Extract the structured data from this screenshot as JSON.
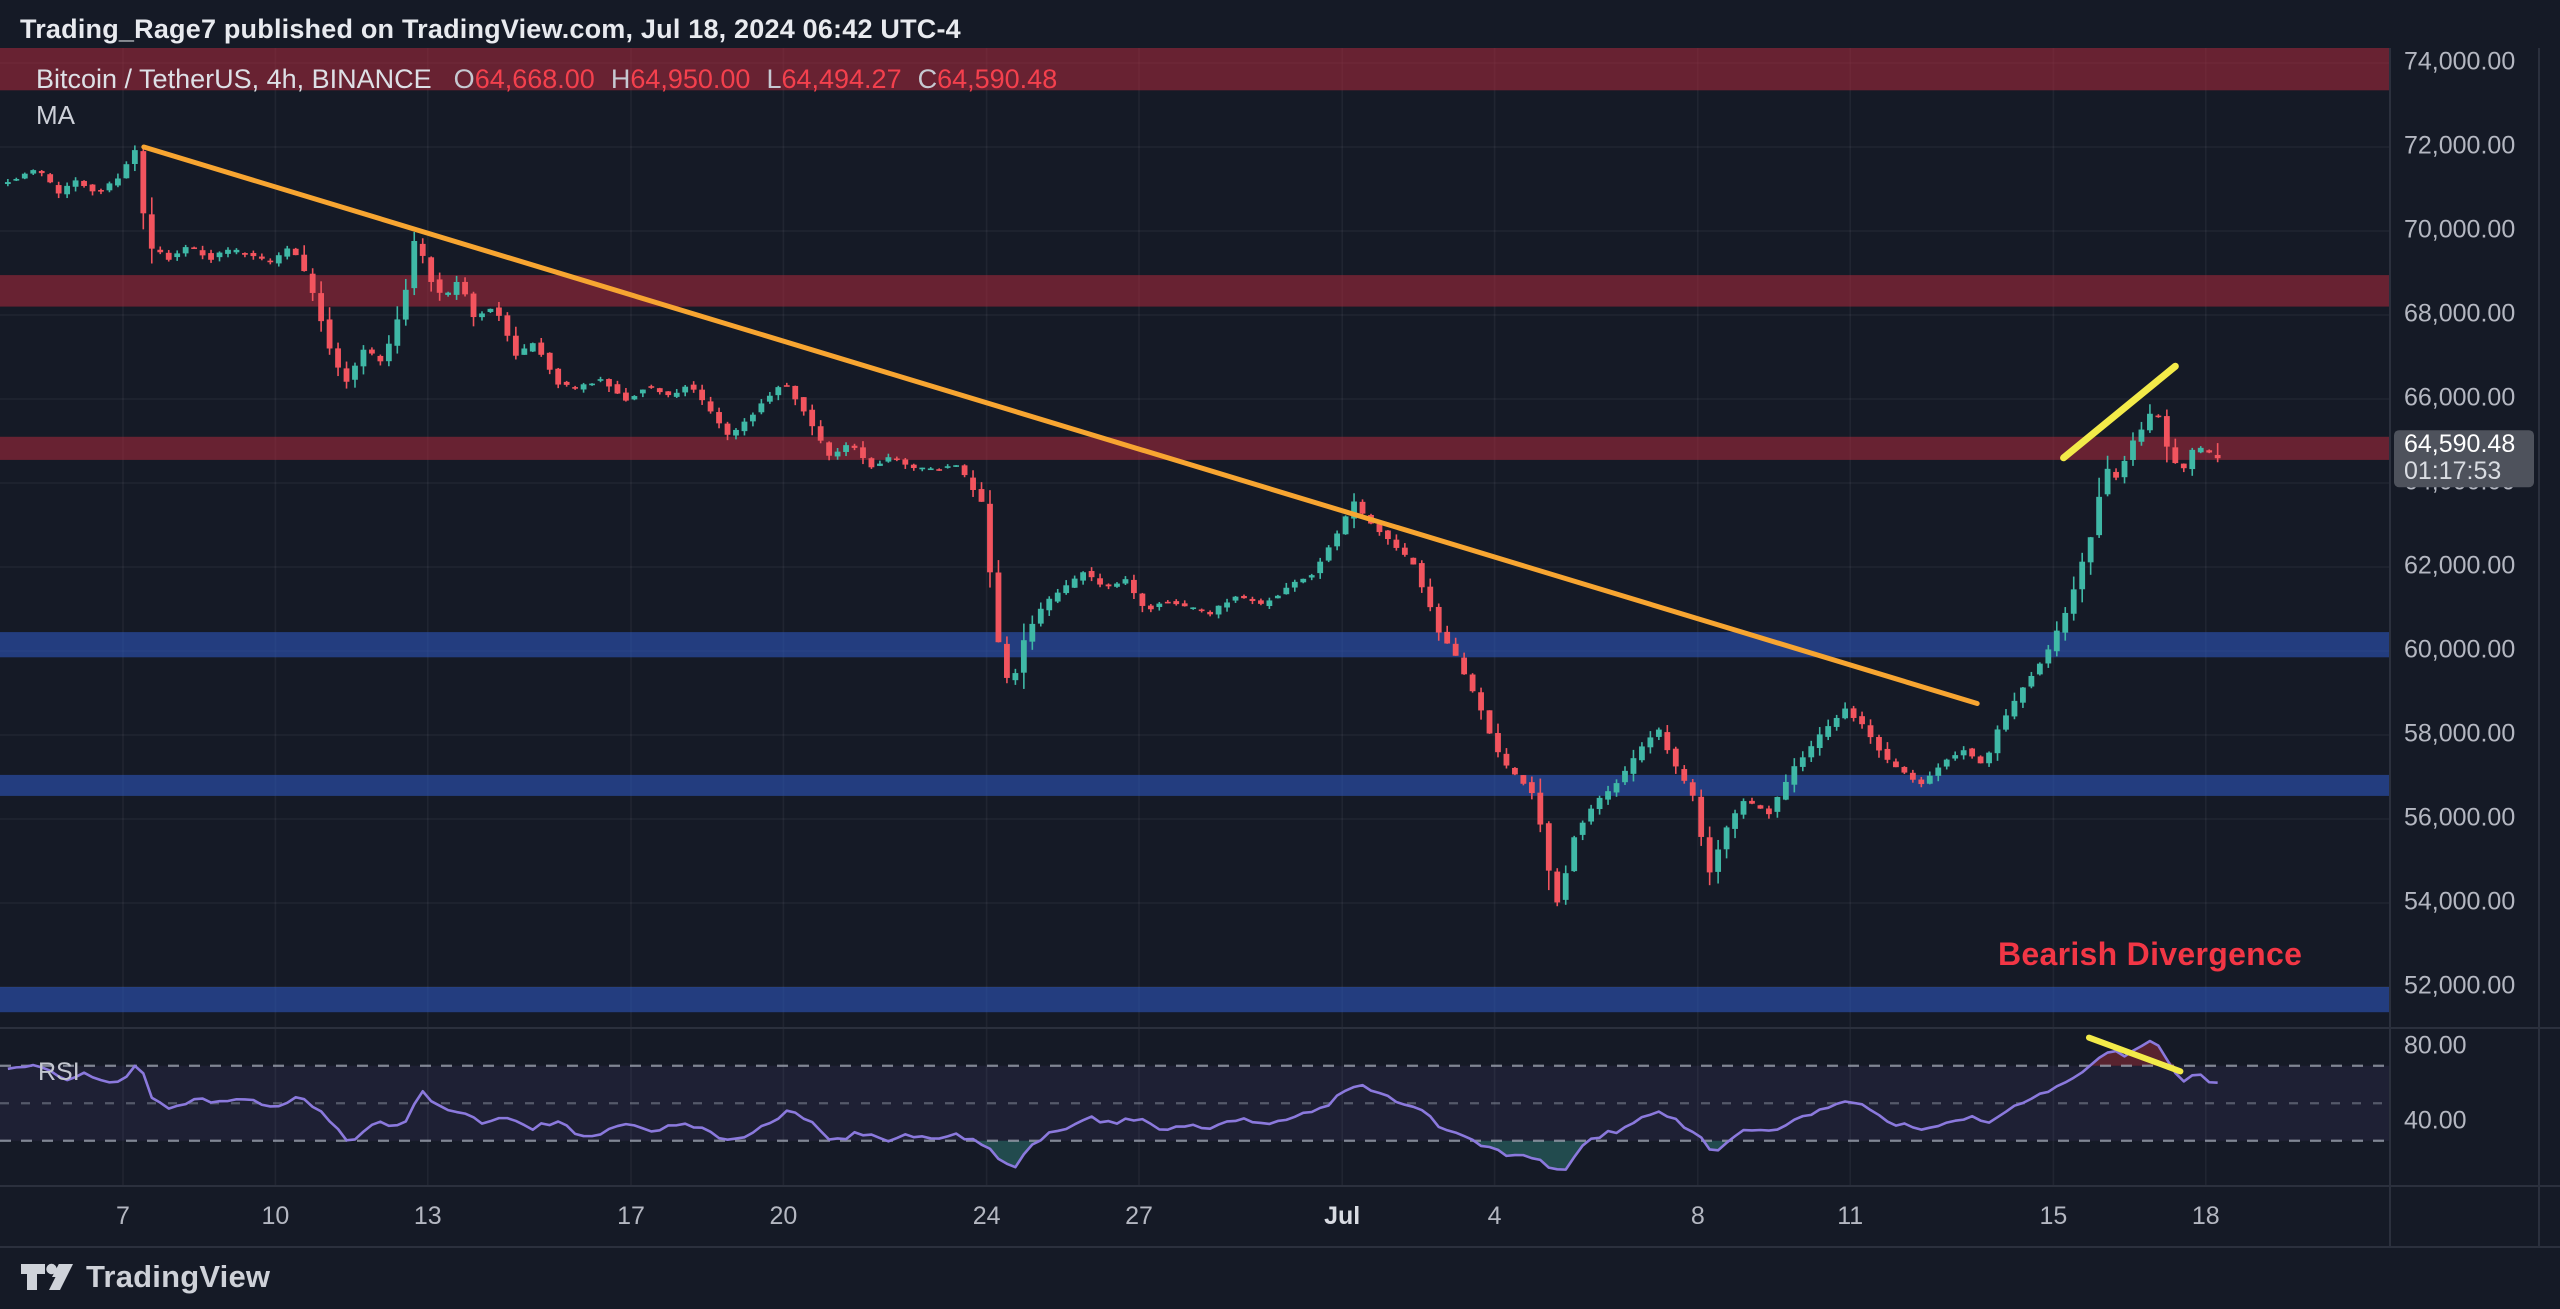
{
  "header": {
    "title": "Trading_Rage7 published on TradingView.com, Jul 18, 2024 06:42 UTC-4"
  },
  "legend": {
    "symbol": "Bitcoin / TetherUS, 4h, BINANCE",
    "ohlc": [
      {
        "key": "O",
        "value": "64,668.00"
      },
      {
        "key": "H",
        "value": "64,950.00"
      },
      {
        "key": "L",
        "value": "64,494.27"
      },
      {
        "key": "C",
        "value": "64,590.48"
      }
    ],
    "indicator": "MA"
  },
  "rsi_pane": {
    "label": "RSI"
  },
  "annotations": {
    "bearish_divergence": "Bearish Divergence"
  },
  "price_axis": {
    "last_price": "64,590.48",
    "countdown": "01:17:53"
  },
  "rsi_axis_labels": [
    "80.00",
    "40.00"
  ],
  "footer": {
    "brand": "TradingView"
  },
  "colors": {
    "background": "#151a26",
    "up_candle": "#3fb8a6",
    "down_candle": "#f2545e",
    "resistance_zone": "rgba(173,42,60,0.55)",
    "support_zone": "rgba(44,84,183,0.62)",
    "trendline_orange": "#f7a531",
    "trendline_yellow": "#f3eb49",
    "rsi_line": "#8b79dd",
    "rsi_overbought_fill": "rgba(244,56,70,0.30)",
    "rsi_oversold_fill": "rgba(66,190,173,0.30)",
    "rsi_band_tint": "rgba(135,115,217,0.08)",
    "annotation_red": "#f23645",
    "ohlc_value_red": "#f4404d",
    "badge_bg": "#4e525c",
    "badge_price_text": "#ffffff",
    "badge_countdown_text": "#d9dce2",
    "axis_text": "#b4b7c1",
    "axis_text_bold": "#d8dbe2",
    "grid": "rgba(240,243,250,0.055)",
    "separator": "#2b303d",
    "dashed_level": "#9aa0ae"
  },
  "chart_data": {
    "type": "candlestick",
    "symbol_title": "Bitcoin / TetherUS, 4h, BINANCE",
    "timeframe": "4h",
    "current_ohlc": {
      "open": 64668.0,
      "high": 64950.0,
      "low": 64494.27,
      "close": 64590.48
    },
    "last_price": 64590.48,
    "countdown": "01:17:53",
    "y_axis": {
      "tick_prices": [
        74000,
        72000,
        70000,
        68000,
        66000,
        64000,
        62000,
        60000,
        58000,
        56000,
        54000,
        52000
      ],
      "visible_range": [
        51000,
        74450
      ]
    },
    "x_axis": {
      "unit": "days_since_2024-06-05",
      "tick_labels": [
        {
          "label": "7",
          "day": 2
        },
        {
          "label": "10",
          "day": 5
        },
        {
          "label": "13",
          "day": 8
        },
        {
          "label": "17",
          "day": 12
        },
        {
          "label": "20",
          "day": 15
        },
        {
          "label": "24",
          "day": 19
        },
        {
          "label": "27",
          "day": 22
        },
        {
          "label": "Jul",
          "day": 26,
          "bold": true
        },
        {
          "label": "4",
          "day": 29
        },
        {
          "label": "8",
          "day": 33
        },
        {
          "label": "11",
          "day": 36
        },
        {
          "label": "15",
          "day": 40
        },
        {
          "label": "18",
          "day": 43
        }
      ]
    },
    "zones": {
      "resistance": [
        [
          73350,
          74400
        ],
        [
          68200,
          68950
        ],
        [
          64550,
          65100
        ]
      ],
      "support": [
        [
          59850,
          60450
        ],
        [
          56550,
          57050
        ],
        [
          51400,
          52000
        ]
      ]
    },
    "trendlines": [
      {
        "name": "descending-resistance",
        "pane": "price",
        "color_key": "trendline_orange",
        "from": [
          2.41,
          72000
        ],
        "to": [
          38.5,
          58750
        ],
        "width": 5
      },
      {
        "name": "price-higher-highs",
        "pane": "price",
        "color_key": "trendline_yellow",
        "from": [
          40.2,
          64600
        ],
        "to": [
          42.4,
          66780
        ],
        "width": 7
      },
      {
        "name": "rsi-lower-highs",
        "pane": "rsi",
        "color_key": "trendline_yellow",
        "from": [
          40.7,
          85
        ],
        "to": [
          42.5,
          67
        ],
        "width": 6
      }
    ],
    "price_path_anchors": [
      [
        -0.4,
        71150
      ],
      [
        0,
        71250
      ],
      [
        0.4,
        71500
      ],
      [
        0.8,
        70900
      ],
      [
        1.2,
        71200
      ],
      [
        1.6,
        70900
      ],
      [
        2.0,
        71300
      ],
      [
        2.35,
        71950
      ],
      [
        2.55,
        69600
      ],
      [
        3.0,
        69350
      ],
      [
        3.4,
        69650
      ],
      [
        3.8,
        69350
      ],
      [
        4.2,
        69550
      ],
      [
        4.6,
        69400
      ],
      [
        5.0,
        69250
      ],
      [
        5.4,
        69700
      ],
      [
        5.8,
        68600
      ],
      [
        6.2,
        67000
      ],
      [
        6.5,
        66400
      ],
      [
        6.8,
        67200
      ],
      [
        7.2,
        66850
      ],
      [
        7.6,
        68300
      ],
      [
        7.85,
        69950
      ],
      [
        8.1,
        68900
      ],
      [
        8.4,
        68350
      ],
      [
        8.7,
        68850
      ],
      [
        9.0,
        67900
      ],
      [
        9.4,
        68250
      ],
      [
        9.8,
        67000
      ],
      [
        10.2,
        67350
      ],
      [
        10.6,
        66400
      ],
      [
        11.0,
        66250
      ],
      [
        11.5,
        66500
      ],
      [
        12.0,
        65950
      ],
      [
        12.4,
        66350
      ],
      [
        12.8,
        66050
      ],
      [
        13.2,
        66350
      ],
      [
        13.6,
        65800
      ],
      [
        14.0,
        65100
      ],
      [
        14.4,
        65550
      ],
      [
        14.8,
        66100
      ],
      [
        15.1,
        66400
      ],
      [
        15.5,
        65700
      ],
      [
        16.0,
        64600
      ],
      [
        16.4,
        64950
      ],
      [
        16.8,
        64350
      ],
      [
        17.2,
        64650
      ],
      [
        17.6,
        64400
      ],
      [
        18.0,
        64300
      ],
      [
        18.5,
        64450
      ],
      [
        19.0,
        63500
      ],
      [
        19.3,
        60300
      ],
      [
        19.55,
        59000
      ],
      [
        19.8,
        60200
      ],
      [
        20.2,
        61100
      ],
      [
        20.6,
        61500
      ],
      [
        21.0,
        61900
      ],
      [
        21.4,
        61450
      ],
      [
        21.8,
        61700
      ],
      [
        22.2,
        60950
      ],
      [
        22.6,
        61200
      ],
      [
        23.0,
        61050
      ],
      [
        23.5,
        60900
      ],
      [
        24.0,
        61350
      ],
      [
        24.5,
        61100
      ],
      [
        25.0,
        61500
      ],
      [
        25.5,
        61850
      ],
      [
        26.0,
        62800
      ],
      [
        26.3,
        63550
      ],
      [
        26.6,
        63100
      ],
      [
        27.0,
        62600
      ],
      [
        27.5,
        62050
      ],
      [
        28.0,
        60400
      ],
      [
        28.4,
        59700
      ],
      [
        28.8,
        58600
      ],
      [
        29.2,
        57400
      ],
      [
        29.6,
        56900
      ],
      [
        29.9,
        56500
      ],
      [
        30.1,
        55000
      ],
      [
        30.35,
        53900
      ],
      [
        30.6,
        55500
      ],
      [
        31.0,
        56300
      ],
      [
        31.5,
        56850
      ],
      [
        32.0,
        57750
      ],
      [
        32.3,
        58150
      ],
      [
        32.7,
        57100
      ],
      [
        33.0,
        56500
      ],
      [
        33.3,
        54700
      ],
      [
        33.6,
        55700
      ],
      [
        34.0,
        56450
      ],
      [
        34.5,
        56150
      ],
      [
        35.0,
        57250
      ],
      [
        35.5,
        58000
      ],
      [
        36.0,
        58650
      ],
      [
        36.4,
        58100
      ],
      [
        36.8,
        57400
      ],
      [
        37.2,
        57050
      ],
      [
        37.5,
        56850
      ],
      [
        37.9,
        57350
      ],
      [
        38.3,
        57650
      ],
      [
        38.7,
        57250
      ],
      [
        39.0,
        58150
      ],
      [
        39.5,
        59150
      ],
      [
        40.0,
        60050
      ],
      [
        40.4,
        61150
      ],
      [
        40.8,
        62650
      ],
      [
        41.1,
        64350
      ],
      [
        41.35,
        64100
      ],
      [
        41.6,
        64900
      ],
      [
        41.85,
        65350
      ],
      [
        42.1,
        65850
      ],
      [
        42.35,
        64700
      ],
      [
        42.6,
        64250
      ],
      [
        42.85,
        64850
      ],
      [
        43.1,
        64750
      ],
      [
        43.35,
        64590
      ]
    ],
    "rsi": {
      "levels": [
        70,
        50,
        30
      ],
      "axis_labels": [
        80,
        40
      ],
      "anchors": [
        [
          -0.4,
          68
        ],
        [
          0.3,
          71
        ],
        [
          0.8,
          62
        ],
        [
          1.3,
          66
        ],
        [
          1.8,
          60
        ],
        [
          2.35,
          71
        ],
        [
          2.6,
          50
        ],
        [
          3.0,
          48
        ],
        [
          3.5,
          53
        ],
        [
          4.0,
          50
        ],
        [
          4.5,
          52
        ],
        [
          5.0,
          48
        ],
        [
          5.5,
          54
        ],
        [
          6.0,
          42
        ],
        [
          6.5,
          28
        ],
        [
          7.0,
          40
        ],
        [
          7.5,
          38
        ],
        [
          7.85,
          57
        ],
        [
          8.2,
          48
        ],
        [
          8.6,
          46
        ],
        [
          9.0,
          40
        ],
        [
          9.5,
          44
        ],
        [
          10.0,
          36
        ],
        [
          10.5,
          40
        ],
        [
          11.0,
          33
        ],
        [
          11.5,
          35
        ],
        [
          12.0,
          39
        ],
        [
          12.5,
          35
        ],
        [
          13.0,
          40
        ],
        [
          13.5,
          36
        ],
        [
          14.0,
          29
        ],
        [
          14.5,
          36
        ],
        [
          15.1,
          46
        ],
        [
          15.5,
          40
        ],
        [
          16.0,
          30
        ],
        [
          16.5,
          35
        ],
        [
          17.0,
          30
        ],
        [
          17.5,
          33
        ],
        [
          18.0,
          31
        ],
        [
          18.5,
          33
        ],
        [
          19.0,
          27
        ],
        [
          19.3,
          18
        ],
        [
          19.55,
          15
        ],
        [
          19.8,
          25
        ],
        [
          20.2,
          33
        ],
        [
          20.6,
          38
        ],
        [
          21.0,
          43
        ],
        [
          21.5,
          39
        ],
        [
          22.0,
          42
        ],
        [
          22.5,
          36
        ],
        [
          23.0,
          39
        ],
        [
          23.5,
          37
        ],
        [
          24.0,
          41
        ],
        [
          24.5,
          39
        ],
        [
          25.0,
          43
        ],
        [
          25.5,
          46
        ],
        [
          26.0,
          55
        ],
        [
          26.3,
          60
        ],
        [
          26.6,
          56
        ],
        [
          27.0,
          52
        ],
        [
          27.5,
          47
        ],
        [
          28.0,
          36
        ],
        [
          28.4,
          32
        ],
        [
          28.8,
          27
        ],
        [
          29.2,
          23
        ],
        [
          29.6,
          21
        ],
        [
          29.9,
          19
        ],
        [
          30.1,
          15
        ],
        [
          30.35,
          12
        ],
        [
          30.6,
          24
        ],
        [
          31.0,
          32
        ],
        [
          31.5,
          36
        ],
        [
          32.0,
          43
        ],
        [
          32.3,
          46
        ],
        [
          32.7,
          38
        ],
        [
          33.0,
          33
        ],
        [
          33.3,
          22
        ],
        [
          33.6,
          30
        ],
        [
          34.0,
          37
        ],
        [
          34.5,
          34
        ],
        [
          35.0,
          42
        ],
        [
          35.5,
          48
        ],
        [
          36.0,
          52
        ],
        [
          36.4,
          46
        ],
        [
          36.8,
          40
        ],
        [
          37.2,
          37
        ],
        [
          37.5,
          35
        ],
        [
          37.9,
          40
        ],
        [
          38.3,
          43
        ],
        [
          38.7,
          39
        ],
        [
          39.0,
          46
        ],
        [
          39.5,
          53
        ],
        [
          40.0,
          58
        ],
        [
          40.4,
          64
        ],
        [
          40.8,
          73
        ],
        [
          41.1,
          79
        ],
        [
          41.35,
          74
        ],
        [
          41.6,
          78
        ],
        [
          41.85,
          83
        ],
        [
          42.1,
          80
        ],
        [
          42.35,
          68
        ],
        [
          42.6,
          62
        ],
        [
          42.85,
          65
        ],
        [
          43.1,
          62
        ],
        [
          43.35,
          60
        ]
      ]
    }
  }
}
